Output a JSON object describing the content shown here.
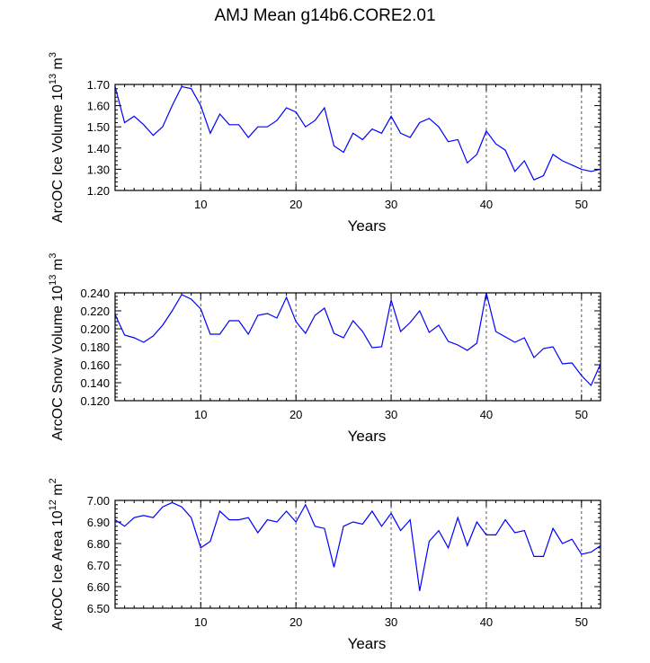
{
  "title": "AMJ Mean g14b6.CORE2.01",
  "colors": {
    "line": "#0000ff",
    "axis": "#000000",
    "grid": "#555555"
  },
  "chart_data": [
    {
      "type": "line",
      "title": "",
      "xlabel": "Years",
      "ylabel_main": "ArcOC Ice Volume 10",
      "ylabel_sup": "13",
      "ylabel_unit": " m",
      "ylabel_unit_sup": "3",
      "xlim": [
        1,
        52
      ],
      "ylim": [
        1.2,
        1.7
      ],
      "yticks": [
        1.2,
        1.3,
        1.4,
        1.5,
        1.6,
        1.7
      ],
      "yticklabels": [
        "1.20",
        "1.30",
        "1.40",
        "1.50",
        "1.60",
        "1.70"
      ],
      "xticks": [
        10,
        20,
        30,
        40,
        50
      ],
      "xticklabels": [
        "10",
        "20",
        "30",
        "40",
        "50"
      ],
      "grid": "dashed vertical at labeled x ticks",
      "x": [
        1,
        2,
        3,
        4,
        5,
        6,
        7,
        8,
        9,
        10,
        11,
        12,
        13,
        14,
        15,
        16,
        17,
        18,
        19,
        20,
        21,
        22,
        23,
        24,
        25,
        26,
        27,
        28,
        29,
        30,
        31,
        32,
        33,
        34,
        35,
        36,
        37,
        38,
        39,
        40,
        41,
        42,
        43,
        44,
        45,
        46,
        47,
        48,
        49,
        50,
        51,
        52
      ],
      "values": [
        1.69,
        1.52,
        1.55,
        1.51,
        1.46,
        1.5,
        1.6,
        1.69,
        1.68,
        1.6,
        1.47,
        1.56,
        1.51,
        1.51,
        1.45,
        1.5,
        1.5,
        1.53,
        1.59,
        1.57,
        1.5,
        1.53,
        1.59,
        1.41,
        1.38,
        1.47,
        1.44,
        1.49,
        1.47,
        1.55,
        1.47,
        1.45,
        1.52,
        1.54,
        1.5,
        1.43,
        1.44,
        1.33,
        1.37,
        1.48,
        1.42,
        1.39,
        1.29,
        1.34,
        1.25,
        1.27,
        1.37,
        1.34,
        1.32,
        1.3,
        1.29,
        1.3
      ]
    },
    {
      "type": "line",
      "title": "",
      "xlabel": "Years",
      "ylabel_main": "ArcOC Snow Volume 10",
      "ylabel_sup": "13",
      "ylabel_unit": " m",
      "ylabel_unit_sup": "3",
      "xlim": [
        1,
        52
      ],
      "ylim": [
        0.12,
        0.24
      ],
      "yticks": [
        0.12,
        0.14,
        0.16,
        0.18,
        0.2,
        0.22,
        0.24
      ],
      "yticklabels": [
        "0.120",
        "0.140",
        "0.160",
        "0.180",
        "0.200",
        "0.220",
        "0.240"
      ],
      "xticks": [
        10,
        20,
        30,
        40,
        50
      ],
      "xticklabels": [
        "10",
        "20",
        "30",
        "40",
        "50"
      ],
      "grid": "dashed vertical at labeled x ticks",
      "x": [
        1,
        2,
        3,
        4,
        5,
        6,
        7,
        8,
        9,
        10,
        11,
        12,
        13,
        14,
        15,
        16,
        17,
        18,
        19,
        20,
        21,
        22,
        23,
        24,
        25,
        26,
        27,
        28,
        29,
        30,
        31,
        32,
        33,
        34,
        35,
        36,
        37,
        38,
        39,
        40,
        41,
        42,
        43,
        44,
        45,
        46,
        47,
        48,
        49,
        50,
        51,
        52
      ],
      "values": [
        0.216,
        0.193,
        0.19,
        0.185,
        0.192,
        0.204,
        0.22,
        0.238,
        0.233,
        0.222,
        0.194,
        0.194,
        0.209,
        0.209,
        0.194,
        0.215,
        0.217,
        0.212,
        0.235,
        0.208,
        0.195,
        0.215,
        0.223,
        0.195,
        0.19,
        0.209,
        0.197,
        0.179,
        0.18,
        0.232,
        0.197,
        0.207,
        0.22,
        0.196,
        0.204,
        0.186,
        0.182,
        0.176,
        0.184,
        0.24,
        0.197,
        0.191,
        0.185,
        0.19,
        0.168,
        0.178,
        0.18,
        0.161,
        0.162,
        0.148,
        0.137,
        0.161
      ]
    },
    {
      "type": "line",
      "title": "",
      "xlabel": "Years",
      "ylabel_main": "ArcOC Ice Area 10",
      "ylabel_sup": "12",
      "ylabel_unit": " m",
      "ylabel_unit_sup": "2",
      "xlim": [
        1,
        52
      ],
      "ylim": [
        6.5,
        7.0
      ],
      "yticks": [
        6.5,
        6.6,
        6.7,
        6.8,
        6.9,
        7.0
      ],
      "yticklabels": [
        "6.50",
        "6.60",
        "6.70",
        "6.80",
        "6.90",
        "7.00"
      ],
      "xticks": [
        10,
        20,
        30,
        40,
        50
      ],
      "xticklabels": [
        "10",
        "20",
        "30",
        "40",
        "50"
      ],
      "grid": "dashed vertical at labeled x ticks",
      "x": [
        1,
        2,
        3,
        4,
        5,
        6,
        7,
        8,
        9,
        10,
        11,
        12,
        13,
        14,
        15,
        16,
        17,
        18,
        19,
        20,
        21,
        22,
        23,
        24,
        25,
        26,
        27,
        28,
        29,
        30,
        31,
        32,
        33,
        34,
        35,
        36,
        37,
        38,
        39,
        40,
        41,
        42,
        43,
        44,
        45,
        46,
        47,
        48,
        49,
        50,
        51,
        52
      ],
      "values": [
        6.91,
        6.88,
        6.92,
        6.93,
        6.92,
        6.97,
        6.99,
        6.97,
        6.92,
        6.78,
        6.81,
        6.95,
        6.91,
        6.91,
        6.92,
        6.85,
        6.91,
        6.9,
        6.95,
        6.9,
        6.98,
        6.88,
        6.87,
        6.69,
        6.88,
        6.9,
        6.89,
        6.95,
        6.88,
        6.94,
        6.86,
        6.91,
        6.58,
        6.81,
        6.86,
        6.78,
        6.92,
        6.79,
        6.9,
        6.84,
        6.84,
        6.91,
        6.85,
        6.86,
        6.74,
        6.74,
        6.87,
        6.8,
        6.82,
        6.75,
        6.76,
        6.79
      ]
    }
  ]
}
